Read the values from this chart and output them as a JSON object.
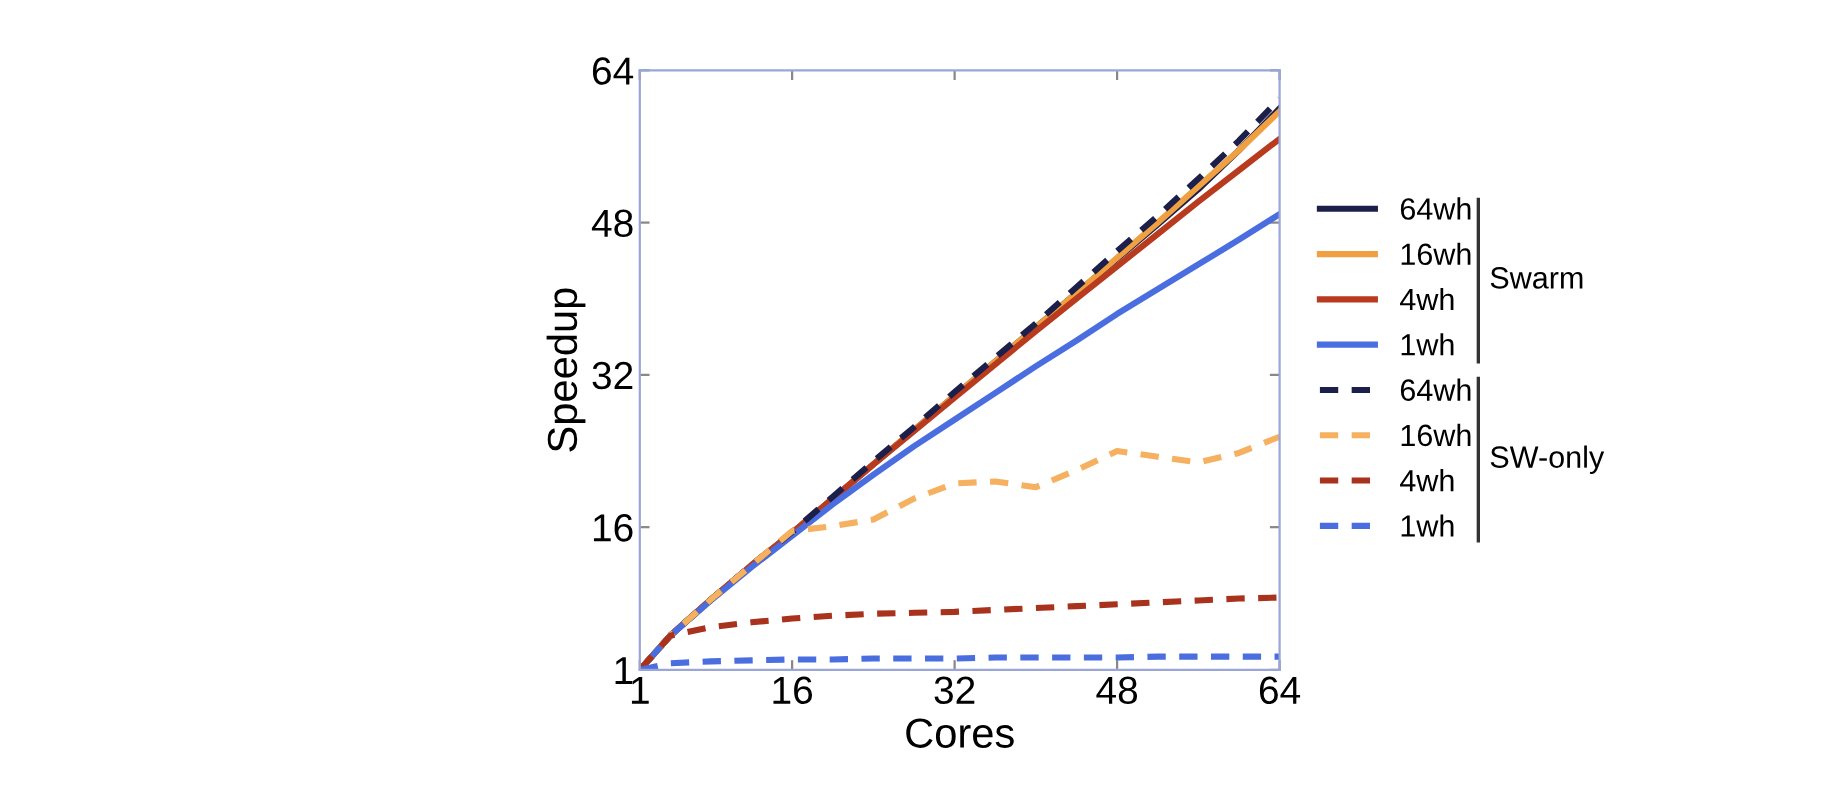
{
  "chart_data": {
    "type": "line",
    "xlabel": "Cores",
    "ylabel": "Speedup",
    "x": [
      1,
      4,
      8,
      12,
      16,
      20,
      24,
      28,
      32,
      36,
      40,
      44,
      48,
      52,
      56,
      60,
      64
    ],
    "xlim": [
      1,
      64
    ],
    "ylim": [
      1,
      64
    ],
    "xticks": [
      1,
      16,
      32,
      48,
      64
    ],
    "yticks": [
      1,
      16,
      32,
      48,
      64
    ],
    "grid": false,
    "legend": "right",
    "line_style": "solid",
    "annotations": [
      "Swarm",
      "SW-only"
    ],
    "series": [
      {
        "name": "64wh",
        "color": "#1c1f4a",
        "values": [
          1,
          4.6,
          8.4,
          12,
          15.4,
          19,
          22.6,
          26.2,
          29.8,
          33.4,
          37,
          40.6,
          44.2,
          47.8,
          51.5,
          55.6,
          60
        ]
      },
      {
        "name": "16wh",
        "color": "#f0a040",
        "values": [
          1,
          4.6,
          8.4,
          12,
          15.4,
          19,
          22.6,
          26.2,
          29.8,
          33.4,
          37,
          40.6,
          44.3,
          48,
          51.8,
          55.6,
          59.7
        ]
      },
      {
        "name": "4wh",
        "color": "#b83a1f",
        "values": [
          1,
          4.6,
          8.4,
          12,
          15.4,
          19,
          22.6,
          26.1,
          29.6,
          33.1,
          36.6,
          40,
          43.4,
          46.8,
          50.2,
          53.5,
          56.8
        ]
      },
      {
        "name": "1wh",
        "color": "#4a6ee0",
        "values": [
          1,
          4.6,
          8.3,
          11.8,
          15.1,
          18.4,
          21.5,
          24.5,
          27.3,
          30.1,
          32.9,
          35.6,
          38.4,
          41,
          43.6,
          46.2,
          48.9
        ]
      },
      {
        "name": "64wh",
        "color": "#1c1f4a",
        "line_style": "dashed",
        "values": [
          1,
          4.6,
          8.4,
          12,
          15.5,
          19.2,
          22.9,
          26.5,
          30.2,
          33.8,
          37.4,
          41.2,
          45,
          48.7,
          52.6,
          56.6,
          61
        ]
      },
      {
        "name": "16wh",
        "color": "#f5b060",
        "line_style": "dashed",
        "values": [
          1,
          4.6,
          8.4,
          12,
          15.6,
          16.1,
          16.8,
          19,
          20.6,
          20.8,
          20.2,
          22,
          24,
          23.4,
          22.8,
          23.8,
          25.5
        ]
      },
      {
        "name": "4wh",
        "color": "#a8321c",
        "line_style": "dashed",
        "values": [
          1,
          4.6,
          5.5,
          6,
          6.4,
          6.7,
          6.9,
          7,
          7.1,
          7.3,
          7.5,
          7.7,
          7.9,
          8.1,
          8.3,
          8.5,
          8.6
        ]
      },
      {
        "name": "1wh",
        "color": "#4a6ee0",
        "line_style": "dashed",
        "values": [
          1,
          1.7,
          1.9,
          2,
          2.1,
          2.1,
          2.2,
          2.2,
          2.2,
          2.3,
          2.3,
          2.3,
          2.3,
          2.4,
          2.4,
          2.4,
          2.4
        ]
      }
    ]
  }
}
